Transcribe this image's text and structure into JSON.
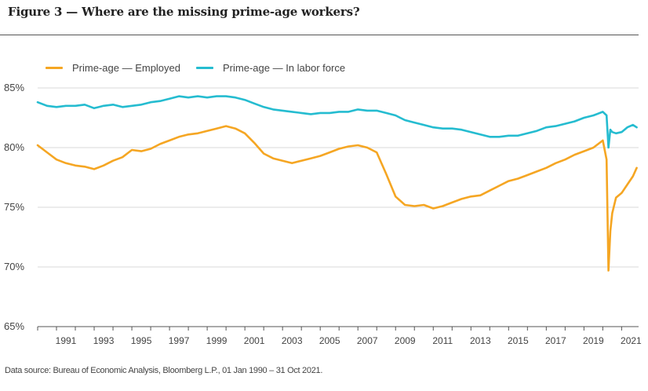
{
  "figure": {
    "title": "Figure 3 — Where are the missing prime-age workers?",
    "source": "Data source: Bureau of Economic Analysis, Bloomberg L.P., 01 Jan 1990 – 31 Oct 2021."
  },
  "colors": {
    "employed": "#F5A623",
    "labor_force": "#25BCD0",
    "grid": "#d9d9d9",
    "axis": "#555555"
  },
  "chart_data": {
    "type": "line",
    "title": "Where are the missing prime-age workers?",
    "xlim": [
      1990.0,
      2021.9
    ],
    "ylim": [
      65,
      85
    ],
    "y_ticks": [
      65,
      70,
      75,
      80,
      85
    ],
    "y_tick_labels": [
      "65%",
      "70%",
      "75%",
      "80%",
      "85%"
    ],
    "x_ticks": [
      1991,
      1993,
      1995,
      1997,
      1999,
      2001,
      2003,
      2005,
      2007,
      2009,
      2011,
      2013,
      2015,
      2017,
      2019,
      2021
    ],
    "grid": true,
    "legend_position": "top-left",
    "series": [
      {
        "name": "Prime-age — Employed",
        "color": "#F5A623",
        "x": [
          1990.0,
          1990.5,
          1991.0,
          1991.5,
          1992.0,
          1992.5,
          1993.0,
          1993.5,
          1994.0,
          1994.5,
          1995.0,
          1995.5,
          1996.0,
          1996.5,
          1997.0,
          1997.5,
          1998.0,
          1998.5,
          1999.0,
          1999.5,
          2000.0,
          2000.5,
          2001.0,
          2001.5,
          2002.0,
          2002.5,
          2003.0,
          2003.5,
          2004.0,
          2004.5,
          2005.0,
          2005.5,
          2006.0,
          2006.5,
          2007.0,
          2007.5,
          2008.0,
          2008.5,
          2009.0,
          2009.5,
          2010.0,
          2010.5,
          2011.0,
          2011.5,
          2012.0,
          2012.5,
          2013.0,
          2013.5,
          2014.0,
          2014.5,
          2015.0,
          2015.5,
          2016.0,
          2016.5,
          2017.0,
          2017.5,
          2018.0,
          2018.5,
          2019.0,
          2019.5,
          2020.0,
          2020.2,
          2020.3,
          2020.4,
          2020.5,
          2020.7,
          2021.0,
          2021.3,
          2021.6,
          2021.8
        ],
        "values": [
          80.2,
          79.6,
          79.0,
          78.7,
          78.5,
          78.4,
          78.2,
          78.5,
          78.9,
          79.2,
          79.8,
          79.7,
          79.9,
          80.3,
          80.6,
          80.9,
          81.1,
          81.2,
          81.4,
          81.6,
          81.8,
          81.6,
          81.2,
          80.4,
          79.5,
          79.1,
          78.9,
          78.7,
          78.9,
          79.1,
          79.3,
          79.6,
          79.9,
          80.1,
          80.2,
          80.0,
          79.6,
          77.8,
          75.9,
          75.2,
          75.1,
          75.2,
          74.9,
          75.1,
          75.4,
          75.7,
          75.9,
          76.0,
          76.4,
          76.8,
          77.2,
          77.4,
          77.7,
          78.0,
          78.3,
          78.7,
          79.0,
          79.4,
          79.7,
          80.0,
          80.6,
          79.0,
          69.7,
          73.0,
          74.5,
          75.8,
          76.2,
          76.9,
          77.6,
          78.3
        ]
      },
      {
        "name": "Prime-age — In labor force",
        "color": "#25BCD0",
        "x": [
          1990.0,
          1990.5,
          1991.0,
          1991.5,
          1992.0,
          1992.5,
          1993.0,
          1993.5,
          1994.0,
          1994.5,
          1995.0,
          1995.5,
          1996.0,
          1996.5,
          1997.0,
          1997.5,
          1998.0,
          1998.5,
          1999.0,
          1999.5,
          2000.0,
          2000.5,
          2001.0,
          2001.5,
          2002.0,
          2002.5,
          2003.0,
          2003.5,
          2004.0,
          2004.5,
          2005.0,
          2005.5,
          2006.0,
          2006.5,
          2007.0,
          2007.5,
          2008.0,
          2008.5,
          2009.0,
          2009.5,
          2010.0,
          2010.5,
          2011.0,
          2011.5,
          2012.0,
          2012.5,
          2013.0,
          2013.5,
          2014.0,
          2014.5,
          2015.0,
          2015.5,
          2016.0,
          2016.5,
          2017.0,
          2017.5,
          2018.0,
          2018.5,
          2019.0,
          2019.5,
          2020.0,
          2020.2,
          2020.3,
          2020.4,
          2020.5,
          2020.7,
          2021.0,
          2021.3,
          2021.6,
          2021.8
        ],
        "values": [
          83.8,
          83.5,
          83.4,
          83.5,
          83.5,
          83.6,
          83.3,
          83.5,
          83.6,
          83.4,
          83.5,
          83.6,
          83.8,
          83.9,
          84.1,
          84.3,
          84.2,
          84.3,
          84.2,
          84.3,
          84.3,
          84.2,
          84.0,
          83.7,
          83.4,
          83.2,
          83.1,
          83.0,
          82.9,
          82.8,
          82.9,
          82.9,
          83.0,
          83.0,
          83.2,
          83.1,
          83.1,
          82.9,
          82.7,
          82.3,
          82.1,
          81.9,
          81.7,
          81.6,
          81.6,
          81.5,
          81.3,
          81.1,
          80.9,
          80.9,
          81.0,
          81.0,
          81.2,
          81.4,
          81.7,
          81.8,
          82.0,
          82.2,
          82.5,
          82.7,
          83.0,
          82.7,
          80.0,
          81.5,
          81.3,
          81.2,
          81.3,
          81.7,
          81.9,
          81.7
        ]
      }
    ]
  }
}
